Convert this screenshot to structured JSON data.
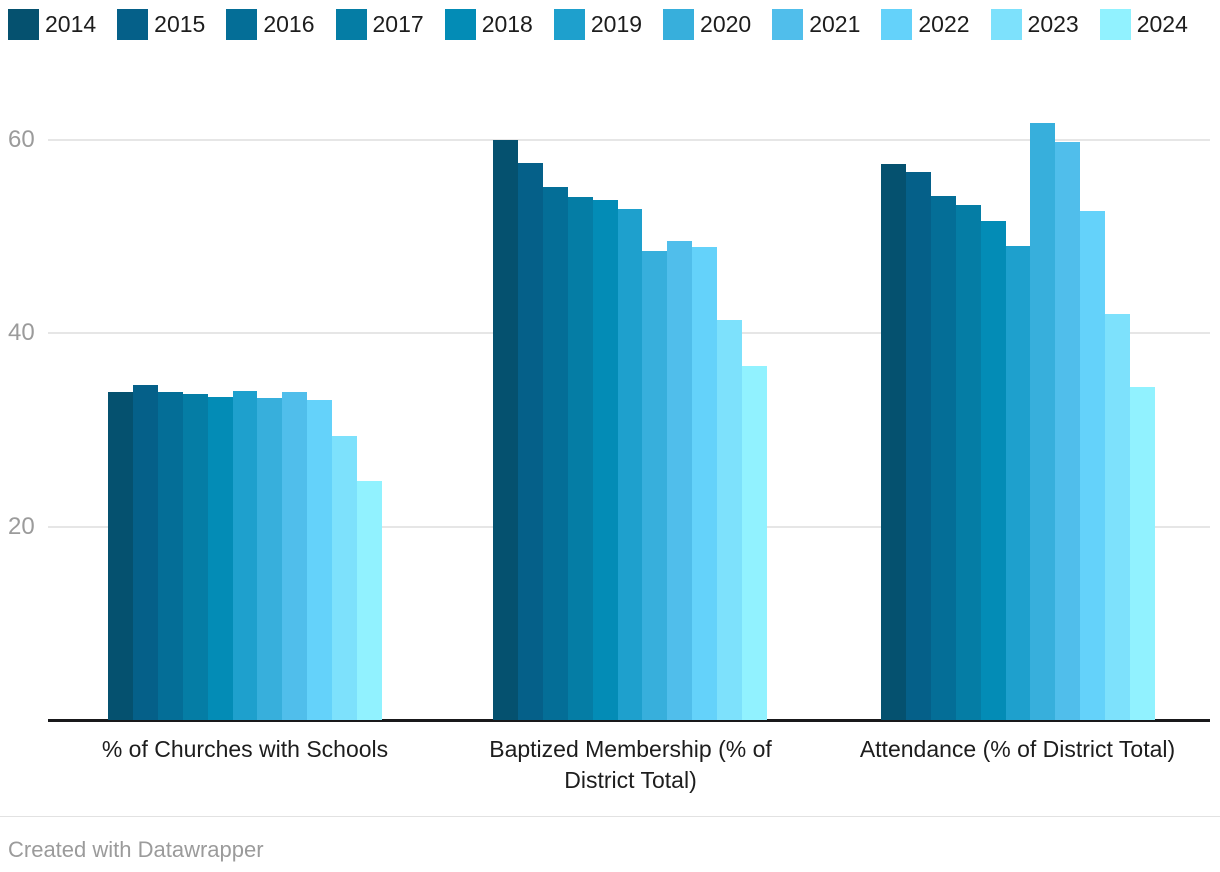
{
  "chart_data": {
    "type": "bar",
    "categories": [
      "% of Churches with Schools",
      "Baptized Membership (% of District Total)",
      "Attendance (% of District Total)"
    ],
    "series": [
      {
        "name": "2014",
        "color": "#05516f",
        "values": [
          33.9,
          60.0,
          57.5
        ]
      },
      {
        "name": "2015",
        "color": "#056089",
        "values": [
          34.7,
          57.6,
          56.7
        ]
      },
      {
        "name": "2016",
        "color": "#046e97",
        "values": [
          33.9,
          55.2,
          54.2
        ]
      },
      {
        "name": "2017",
        "color": "#057da5",
        "values": [
          33.7,
          54.1,
          53.3
        ]
      },
      {
        "name": "2018",
        "color": "#038cb6",
        "values": [
          33.4,
          53.8,
          51.6
        ]
      },
      {
        "name": "2019",
        "color": "#1ea0cd",
        "values": [
          34.0,
          52.9,
          49.1
        ]
      },
      {
        "name": "2020",
        "color": "#37afdc",
        "values": [
          33.3,
          48.5,
          61.8
        ]
      },
      {
        "name": "2021",
        "color": "#50beeb",
        "values": [
          33.9,
          49.6,
          59.8
        ]
      },
      {
        "name": "2022",
        "color": "#64d2fa",
        "values": [
          33.1,
          48.9,
          52.7
        ]
      },
      {
        "name": "2023",
        "color": "#7de1fc",
        "values": [
          29.4,
          41.4,
          42.0
        ]
      },
      {
        "name": "2024",
        "color": "#91f2ff",
        "values": [
          24.7,
          36.6,
          34.5
        ]
      }
    ],
    "yticks": [
      20,
      40,
      60
    ],
    "ylim": [
      0,
      64.15
    ],
    "grid": true,
    "legend_position": "top",
    "title": "",
    "xlabel": "",
    "ylabel": ""
  },
  "footer": {
    "credit": "Created with Datawrapper"
  }
}
